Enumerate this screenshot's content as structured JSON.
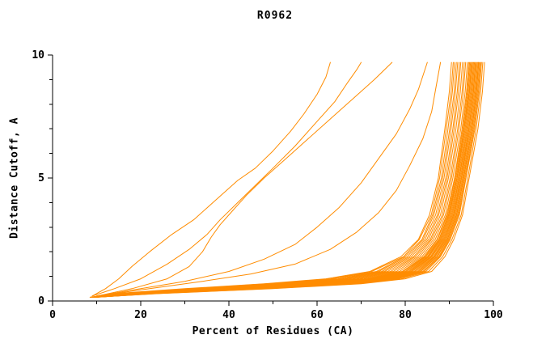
{
  "chart_data": {
    "type": "line",
    "title": "R0962",
    "xlabel": "Percent of Residues (CA)",
    "ylabel": "Distance Cutoff, A",
    "xlim": [
      0,
      100
    ],
    "ylim": [
      0,
      10
    ],
    "x_ticks": {
      "major": [
        0,
        20,
        40,
        60,
        80,
        100
      ],
      "minor": [
        10,
        30,
        50,
        70,
        90
      ]
    },
    "y_ticks": {
      "major": [
        0,
        5,
        10
      ],
      "minor": [
        1,
        2,
        3,
        4,
        6,
        7,
        8,
        9
      ]
    },
    "line_color": "#ff8c00",
    "axis_color": "#000000",
    "background": "#ffffff",
    "legend": "none",
    "grid": false,
    "n_series": 35,
    "y_levels": [
      0.15,
      0.3,
      0.5,
      0.7,
      0.9,
      1.2,
      1.8,
      2.5,
      3.5,
      5,
      7,
      8.5,
      9.7
    ],
    "bunch_series_xs": [
      [
        8.5,
        14.0,
        30.0,
        48.0,
        62.0,
        72.0,
        79.0,
        83.0,
        85.5,
        87.5,
        89.0,
        90.0,
        90.5
      ],
      [
        8.6,
        14.8,
        31.4,
        48.6,
        63.2,
        72.4,
        79.6,
        83.2,
        85.9,
        87.8,
        89.3,
        90.4,
        90.9
      ],
      [
        8.6,
        15.2,
        32.0,
        50.5,
        63.5,
        73.5,
        79.9,
        83.8,
        86.2,
        88.2,
        89.7,
        90.7,
        91.2
      ],
      [
        8.7,
        15.6,
        32.6,
        51.0,
        64.8,
        74.0,
        80.4,
        84.1,
        86.5,
        88.5,
        90.1,
        91.1,
        91.6
      ],
      [
        8.8,
        16.0,
        34.0,
        52.2,
        65.4,
        74.7,
        80.9,
        84.5,
        86.9,
        88.8,
        90.4,
        91.4,
        91.9
      ],
      [
        8.8,
        16.4,
        34.8,
        53.2,
        66.3,
        75.3,
        81.4,
        84.9,
        87.3,
        89.2,
        90.8,
        91.8,
        92.3
      ],
      [
        8.9,
        16.9,
        35.7,
        54.3,
        67.1,
        76.0,
        81.9,
        85.3,
        87.6,
        89.5,
        91.1,
        92.1,
        92.6
      ],
      [
        8.9,
        17.3,
        36.7,
        55.3,
        68.0,
        76.7,
        82.3,
        85.7,
        88.0,
        89.8,
        91.5,
        92.5,
        93.0
      ],
      [
        9.0,
        17.8,
        37.6,
        56.4,
        68.9,
        77.3,
        82.8,
        86.0,
        88.4,
        90.2,
        91.9,
        92.9,
        93.4
      ],
      [
        9.1,
        18.3,
        38.6,
        57.4,
        69.7,
        78.0,
        83.3,
        86.4,
        88.7,
        90.5,
        92.2,
        93.2,
        93.7
      ],
      [
        9.1,
        18.8,
        39.5,
        58.5,
        70.6,
        78.7,
        83.8,
        86.8,
        89.1,
        90.8,
        92.6,
        93.6,
        94.1
      ],
      [
        9.2,
        19.2,
        40.5,
        59.5,
        71.4,
        79.3,
        84.2,
        87.2,
        89.4,
        91.2,
        92.9,
        93.9,
        94.4
      ],
      [
        9.3,
        19.7,
        41.4,
        60.6,
        72.3,
        80.0,
        84.7,
        87.6,
        89.8,
        91.5,
        93.3,
        94.3,
        94.8
      ],
      [
        9.3,
        20.2,
        42.4,
        61.6,
        73.1,
        80.7,
        85.2,
        87.9,
        90.1,
        91.8,
        93.6,
        94.6,
        95.1
      ],
      [
        9.4,
        20.7,
        43.3,
        62.7,
        74.0,
        81.3,
        85.7,
        88.3,
        90.5,
        92.2,
        94.0,
        95.0,
        95.5
      ],
      [
        9.5,
        21.1,
        44.3,
        63.7,
        74.9,
        82.0,
        86.1,
        88.7,
        90.9,
        92.5,
        94.4,
        95.4,
        95.9
      ],
      [
        9.5,
        21.6,
        45.2,
        64.8,
        75.7,
        82.7,
        86.6,
        89.1,
        91.2,
        92.8,
        94.7,
        95.7,
        96.2
      ],
      [
        9.6,
        22.1,
        46.2,
        65.8,
        76.6,
        83.3,
        87.1,
        89.5,
        91.6,
        93.2,
        95.1,
        96.1,
        96.6
      ],
      [
        9.7,
        22.5,
        47.1,
        66.9,
        77.4,
        84.0,
        87.6,
        89.8,
        91.9,
        93.5,
        95.4,
        96.4,
        96.9
      ],
      [
        9.7,
        23.0,
        48.1,
        67.9,
        78.3,
        84.7,
        88.0,
        90.2,
        92.3,
        93.8,
        95.8,
        96.8,
        97.3
      ],
      [
        9.8,
        23.5,
        49.0,
        69.0,
        79.1,
        85.3,
        88.5,
        90.6,
        92.7,
        94.2,
        96.1,
        97.1,
        97.6
      ],
      [
        9.9,
        24.0,
        50.0,
        70.0,
        80.0,
        86.0,
        89.0,
        91.0,
        93.0,
        94.5,
        96.5,
        97.5,
        98.0
      ],
      [
        9.2,
        19.5,
        41.0,
        60.0,
        71.8,
        79.6,
        84.5,
        87.3,
        89.6,
        91.3,
        93.1,
        94.1,
        94.6
      ],
      [
        9.3,
        20.0,
        42.0,
        61.0,
        72.6,
        80.3,
        85.0,
        87.7,
        89.9,
        91.7,
        93.4,
        94.5,
        95.0
      ],
      [
        9.4,
        20.5,
        43.0,
        62.0,
        73.5,
        81.0,
        85.4,
        88.1,
        90.3,
        92.0,
        93.8,
        94.8,
        95.3
      ],
      [
        9.4,
        21.0,
        44.0,
        63.2,
        74.4,
        81.6,
        85.9,
        88.5,
        90.7,
        92.3,
        94.2,
        95.2,
        95.7
      ],
      [
        9.5,
        21.4,
        44.8,
        64.2,
        75.3,
        82.3,
        86.4,
        88.9,
        91.0,
        92.7,
        94.5,
        95.5,
        96.0
      ],
      [
        9.6,
        21.9,
        45.7,
        65.3,
        76.1,
        83.0,
        86.8,
        89.3,
        91.4,
        93.0,
        94.9,
        95.9,
        96.4
      ],
      [
        9.6,
        22.3,
        46.6,
        66.3,
        77.0,
        83.6,
        87.3,
        89.6,
        91.7,
        93.3,
        95.2,
        96.2,
        96.7
      ],
      [
        9.7,
        22.8,
        47.6,
        67.4,
        77.8,
        84.3,
        87.8,
        90.0,
        92.1,
        93.7,
        95.6,
        96.6,
        97.1
      ]
    ],
    "outlier_series": [
      [
        [
          9,
          0.2
        ],
        [
          12,
          0.5
        ],
        [
          15,
          0.9
        ],
        [
          18,
          1.4
        ],
        [
          22,
          2.0
        ],
        [
          27,
          2.7
        ],
        [
          32,
          3.3
        ],
        [
          37,
          4.1
        ],
        [
          42,
          4.9
        ],
        [
          46,
          5.4
        ],
        [
          50,
          6.1
        ],
        [
          54,
          6.9
        ],
        [
          57,
          7.6
        ],
        [
          60,
          8.4
        ],
        [
          62,
          9.1
        ],
        [
          63,
          9.7
        ]
      ],
      [
        [
          9,
          0.2
        ],
        [
          14,
          0.5
        ],
        [
          20,
          0.9
        ],
        [
          26,
          1.5
        ],
        [
          31,
          2.1
        ],
        [
          35,
          2.7
        ],
        [
          38,
          3.3
        ],
        [
          42,
          4.0
        ],
        [
          46,
          4.7
        ],
        [
          50,
          5.4
        ],
        [
          55,
          6.3
        ],
        [
          60,
          7.3
        ],
        [
          64,
          8.1
        ],
        [
          67,
          8.9
        ],
        [
          69,
          9.4
        ],
        [
          70,
          9.7
        ]
      ],
      [
        [
          10,
          0.2
        ],
        [
          18,
          0.5
        ],
        [
          26,
          0.9
        ],
        [
          31,
          1.4
        ],
        [
          34,
          2.0
        ],
        [
          36,
          2.6
        ],
        [
          38,
          3.1
        ],
        [
          41,
          3.7
        ],
        [
          44,
          4.3
        ],
        [
          48,
          5.0
        ],
        [
          53,
          5.8
        ],
        [
          58,
          6.6
        ],
        [
          63,
          7.4
        ],
        [
          68,
          8.2
        ],
        [
          73,
          9.0
        ],
        [
          77,
          9.7
        ]
      ],
      [
        [
          10,
          0.2
        ],
        [
          20,
          0.5
        ],
        [
          30,
          0.8
        ],
        [
          40,
          1.2
        ],
        [
          48,
          1.7
        ],
        [
          55,
          2.3
        ],
        [
          60,
          3.0
        ],
        [
          65,
          3.8
        ],
        [
          70,
          4.8
        ],
        [
          74,
          5.8
        ],
        [
          78,
          6.8
        ],
        [
          81,
          7.8
        ],
        [
          83,
          8.6
        ],
        [
          85,
          9.7
        ]
      ],
      [
        [
          10,
          0.2
        ],
        [
          22,
          0.5
        ],
        [
          34,
          0.8
        ],
        [
          45,
          1.1
        ],
        [
          55,
          1.5
        ],
        [
          63,
          2.1
        ],
        [
          69,
          2.8
        ],
        [
          74,
          3.6
        ],
        [
          78,
          4.5
        ],
        [
          81,
          5.5
        ],
        [
          84,
          6.6
        ],
        [
          86,
          7.7
        ],
        [
          87,
          8.7
        ],
        [
          88,
          9.7
        ]
      ]
    ]
  }
}
